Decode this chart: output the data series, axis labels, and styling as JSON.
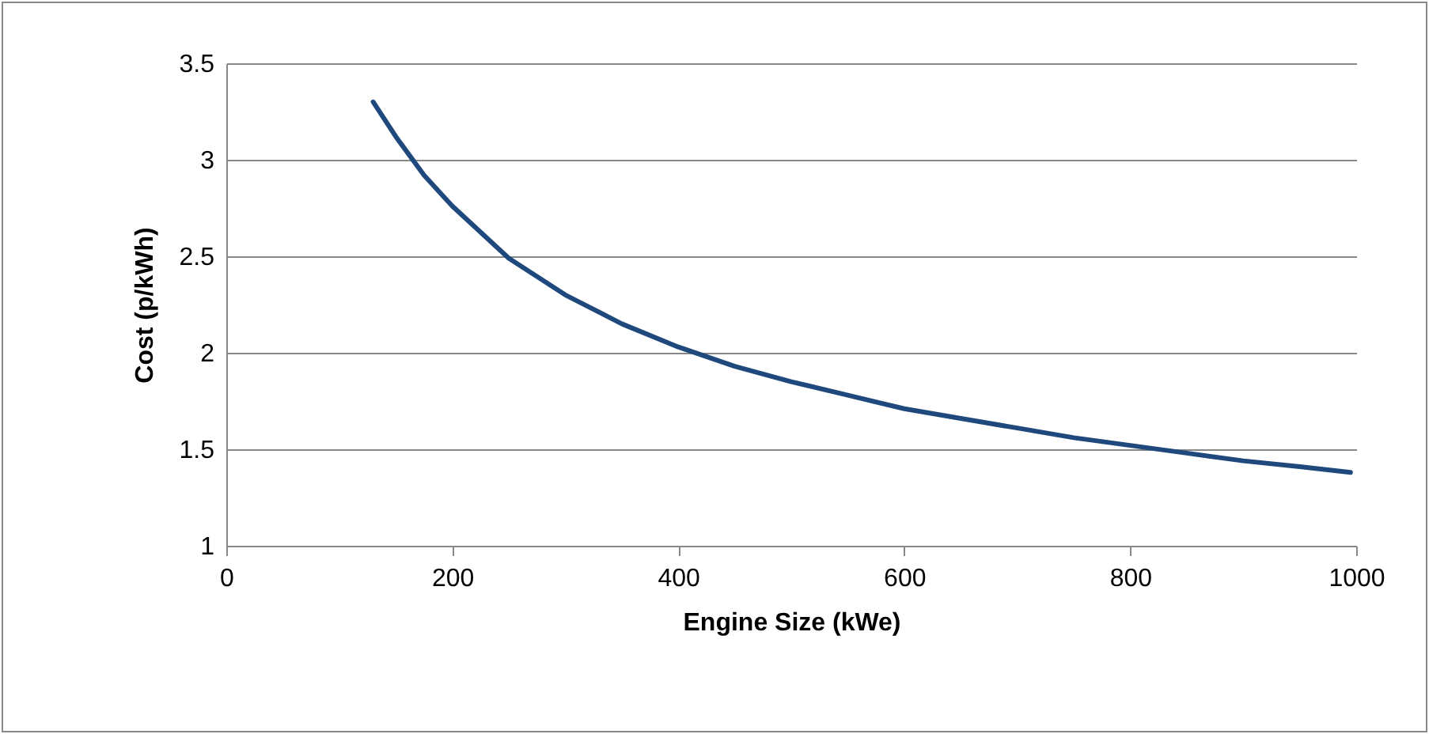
{
  "chart_data": {
    "type": "line",
    "xlabel": "Engine Size (kWe)",
    "ylabel": "Cost (p/kWh)",
    "x": [
      130,
      150,
      175,
      200,
      250,
      300,
      350,
      400,
      450,
      500,
      550,
      600,
      650,
      700,
      750,
      800,
      850,
      900,
      950,
      995
    ],
    "series": [
      {
        "color": "#1f497d",
        "values": [
          3.3,
          3.12,
          2.92,
          2.76,
          2.49,
          2.3,
          2.15,
          2.03,
          1.93,
          1.85,
          1.78,
          1.71,
          1.66,
          1.61,
          1.56,
          1.52,
          1.48,
          1.44,
          1.41,
          1.38
        ]
      }
    ],
    "xlim": [
      0,
      1000
    ],
    "xticks": [
      0,
      200,
      400,
      600,
      800,
      1000
    ],
    "ylim": [
      1,
      3.5
    ],
    "yticks": [
      1,
      1.5,
      2,
      2.5,
      3,
      3.5
    ],
    "grid": "y",
    "legend": false,
    "marker": "none",
    "line_style": "solid"
  }
}
